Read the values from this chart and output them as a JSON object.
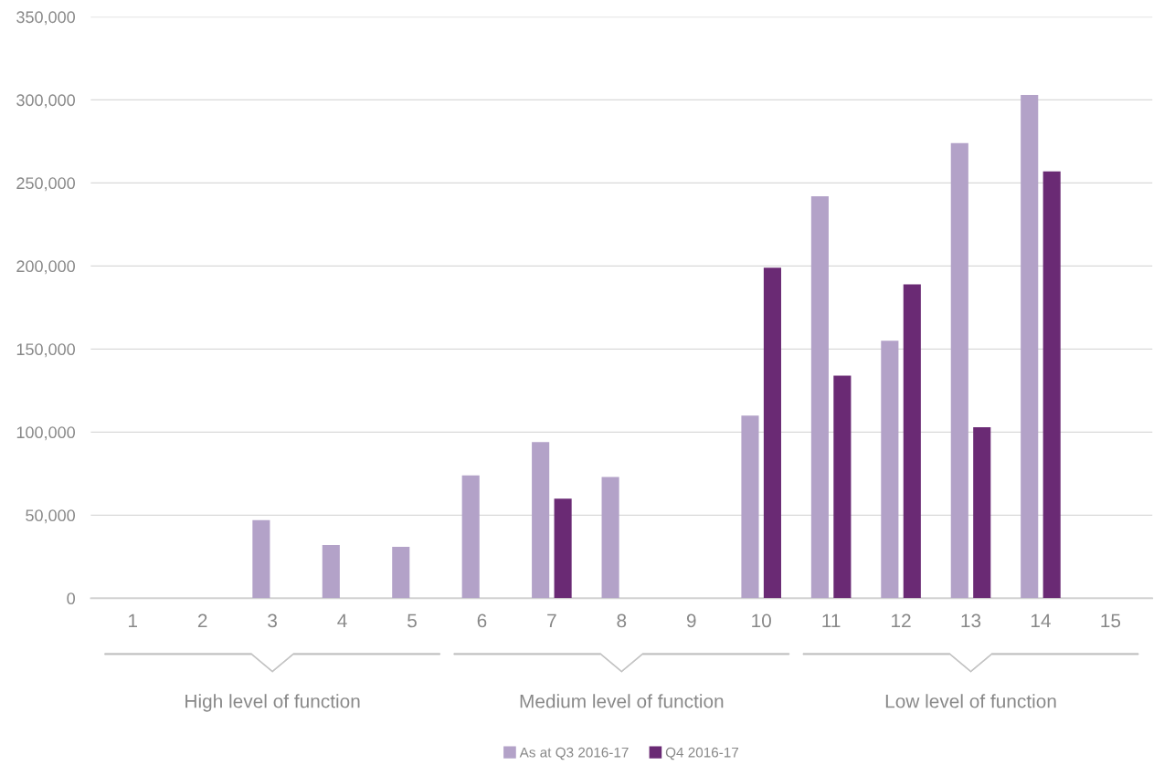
{
  "chart_data": {
    "type": "bar",
    "categories": [
      "1",
      "2",
      "3",
      "4",
      "5",
      "6",
      "7",
      "8",
      "9",
      "10",
      "11",
      "12",
      "13",
      "14",
      "15"
    ],
    "series": [
      {
        "name": "As at Q3 2016-17",
        "color": "#b3a2c8",
        "values": [
          null,
          null,
          47000,
          32000,
          31000,
          74000,
          94000,
          73000,
          null,
          110000,
          242000,
          155000,
          274000,
          303000,
          null
        ]
      },
      {
        "name": "Q4 2016-17",
        "color": "#6a2a74",
        "values": [
          null,
          null,
          null,
          null,
          null,
          null,
          60000,
          null,
          null,
          199000,
          134000,
          189000,
          103000,
          257000,
          null
        ]
      }
    ],
    "ylim": [
      0,
      350000
    ],
    "yticks": [
      {
        "value": 0,
        "label": "0"
      },
      {
        "value": 50000,
        "label": "50,000"
      },
      {
        "value": 100000,
        "label": "100,000"
      },
      {
        "value": 150000,
        "label": "150,000"
      },
      {
        "value": 200000,
        "label": "200,000"
      },
      {
        "value": 250000,
        "label": "250,000"
      },
      {
        "value": 300000,
        "label": "300,000"
      },
      {
        "value": 350000,
        "label": "350,000"
      }
    ],
    "grid": "y",
    "legend": "bottom",
    "annotations": [
      "High level of function",
      "Medium level of function",
      "Low level of function"
    ]
  }
}
